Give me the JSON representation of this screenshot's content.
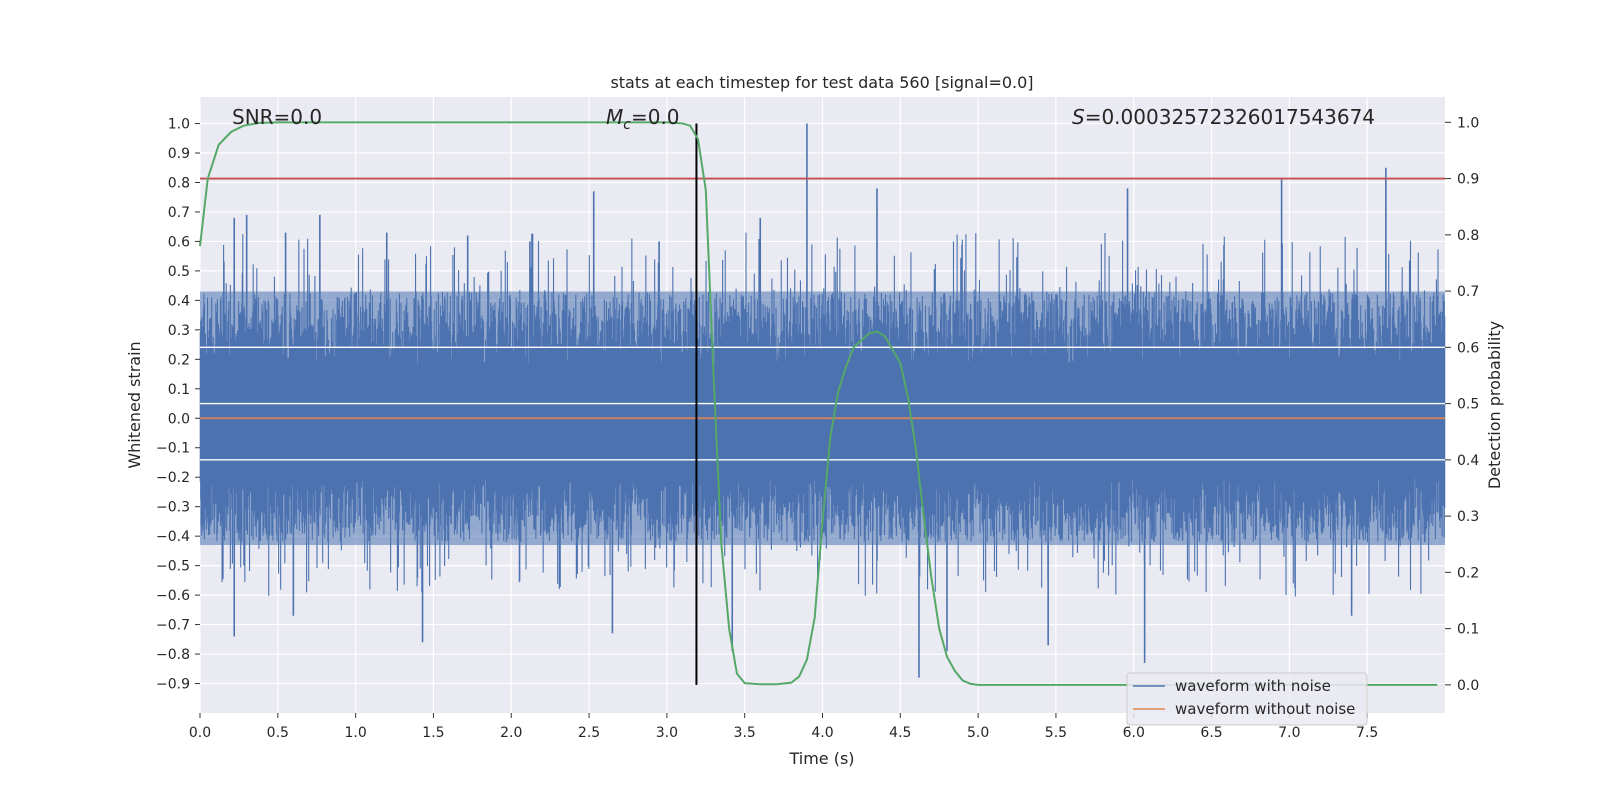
{
  "chart_data": {
    "type": "line",
    "title": "stats at each timestep for test data 560 [signal=0.0]",
    "xlabel": "Time (s)",
    "ylabel_left": "Whitened strain",
    "ylabel_right": "Detection probability",
    "xlim": [
      0.0,
      8.0
    ],
    "ylim_left": [
      -1.0,
      1.09
    ],
    "ylim_right": [
      -0.05,
      1.045
    ],
    "x_ticks": [
      0.0,
      0.5,
      1.0,
      1.5,
      2.0,
      2.5,
      3.0,
      3.5,
      4.0,
      4.5,
      5.0,
      5.5,
      6.0,
      6.5,
      7.0,
      7.5
    ],
    "x_tick_labels": [
      "0.0",
      "0.5",
      "1.0",
      "1.5",
      "2.0",
      "2.5",
      "3.0",
      "3.5",
      "4.0",
      "4.5",
      "5.0",
      "5.5",
      "6.0",
      "6.5",
      "7.0",
      "7.5"
    ],
    "y_left_ticks": [
      1.0,
      0.9,
      0.8,
      0.7,
      0.6,
      0.5,
      0.4,
      0.3,
      0.2,
      0.1,
      0.0,
      -0.1,
      -0.2,
      -0.3,
      -0.4,
      -0.5,
      -0.6,
      -0.7,
      -0.8,
      -0.9
    ],
    "y_left_tick_labels": [
      "1.0",
      "0.9",
      "0.8",
      "0.7",
      "0.6",
      "0.5",
      "0.4",
      "0.3",
      "0.2",
      "0.1",
      "0.0",
      "−0.1",
      "−0.2",
      "−0.3",
      "−0.4",
      "−0.5",
      "−0.6",
      "−0.7",
      "−0.8",
      "−0.9"
    ],
    "y_right_ticks": [
      1.0,
      0.9,
      0.8,
      0.7,
      0.6,
      0.5,
      0.4,
      0.3,
      0.2,
      0.1,
      0.0
    ],
    "y_right_tick_labels": [
      "1.0",
      "0.9",
      "0.8",
      "0.7",
      "0.6",
      "0.5",
      "0.4",
      "0.3",
      "0.2",
      "0.1",
      "0.0"
    ],
    "annotations": {
      "snr": "SNR=0.0",
      "mc_symbol": "M",
      "mc_subscript": "c",
      "mc_value": "=0.0",
      "s_symbol": "S",
      "s_value": "=0.00032572326017543674"
    },
    "threshold_probability": 0.9,
    "marker_time": 3.19,
    "series": [
      {
        "name": "waveform with noise",
        "color": "#4c72b0",
        "axis": "left",
        "envelope": "dense noise, mostly within ±0.43, sparse spikes up to 1.0 and down to −0.88",
        "peaks": [
          {
            "x": 0.22,
            "y": 0.68
          },
          {
            "x": 0.3,
            "y": 0.69
          },
          {
            "x": 0.55,
            "y": 0.63
          },
          {
            "x": 0.77,
            "y": 0.69
          },
          {
            "x": 1.2,
            "y": 0.63
          },
          {
            "x": 1.72,
            "y": 0.62
          },
          {
            "x": 2.12,
            "y": 0.6
          },
          {
            "x": 2.53,
            "y": 0.77
          },
          {
            "x": 2.95,
            "y": 0.6
          },
          {
            "x": 3.6,
            "y": 0.68
          },
          {
            "x": 3.9,
            "y": 1.0
          },
          {
            "x": 4.35,
            "y": 0.78
          },
          {
            "x": 5.96,
            "y": 0.78
          },
          {
            "x": 6.95,
            "y": 0.81
          },
          {
            "x": 7.62,
            "y": 0.85
          },
          {
            "x": 0.22,
            "y": -0.74
          },
          {
            "x": 0.6,
            "y": -0.67
          },
          {
            "x": 1.43,
            "y": -0.76
          },
          {
            "x": 2.65,
            "y": -0.73
          },
          {
            "x": 3.42,
            "y": -0.79
          },
          {
            "x": 4.62,
            "y": -0.88
          },
          {
            "x": 4.8,
            "y": -0.79
          },
          {
            "x": 5.45,
            "y": -0.77
          },
          {
            "x": 6.07,
            "y": -0.83
          },
          {
            "x": 7.4,
            "y": -0.67
          }
        ]
      },
      {
        "name": "waveform without noise",
        "color": "#dd8452",
        "axis": "left",
        "x": [
          0.0,
          8.0
        ],
        "y": [
          0.0,
          0.0
        ]
      },
      {
        "name": "detection probability",
        "color": "#55a868",
        "axis": "right",
        "x": [
          0.0,
          0.05,
          0.12,
          0.2,
          0.28,
          0.38,
          0.5,
          1.0,
          2.0,
          3.0,
          3.1,
          3.15,
          3.2,
          3.25,
          3.3,
          3.35,
          3.4,
          3.45,
          3.5,
          3.6,
          3.7,
          3.8,
          3.85,
          3.9,
          3.95,
          4.0,
          4.05,
          4.1,
          4.15,
          4.2,
          4.3,
          4.35,
          4.4,
          4.5,
          4.55,
          4.6,
          4.65,
          4.7,
          4.75,
          4.8,
          4.85,
          4.9,
          4.95,
          5.0,
          5.5,
          6.0,
          7.0,
          7.95
        ],
        "y": [
          0.78,
          0.9,
          0.96,
          0.983,
          0.994,
          0.999,
          1.0,
          1.0,
          1.0,
          1.0,
          0.998,
          0.994,
          0.97,
          0.88,
          0.55,
          0.25,
          0.1,
          0.02,
          0.003,
          0.001,
          0.001,
          0.004,
          0.015,
          0.045,
          0.12,
          0.29,
          0.44,
          0.52,
          0.565,
          0.6,
          0.625,
          0.628,
          0.62,
          0.572,
          0.51,
          0.42,
          0.3,
          0.19,
          0.1,
          0.05,
          0.025,
          0.008,
          0.002,
          0.0,
          0.0,
          0.0,
          0.0,
          0.0
        ]
      }
    ],
    "legend": {
      "position": "lower-right",
      "entries": [
        {
          "label": "waveform with noise",
          "color": "#4c72b0"
        },
        {
          "label": "waveform without noise",
          "color": "#dd8452"
        }
      ]
    },
    "style": {
      "background": "#eaeaf2",
      "grid": "#ffffff",
      "threshold_color": "#c44e52",
      "marker_color": "#000000"
    }
  }
}
